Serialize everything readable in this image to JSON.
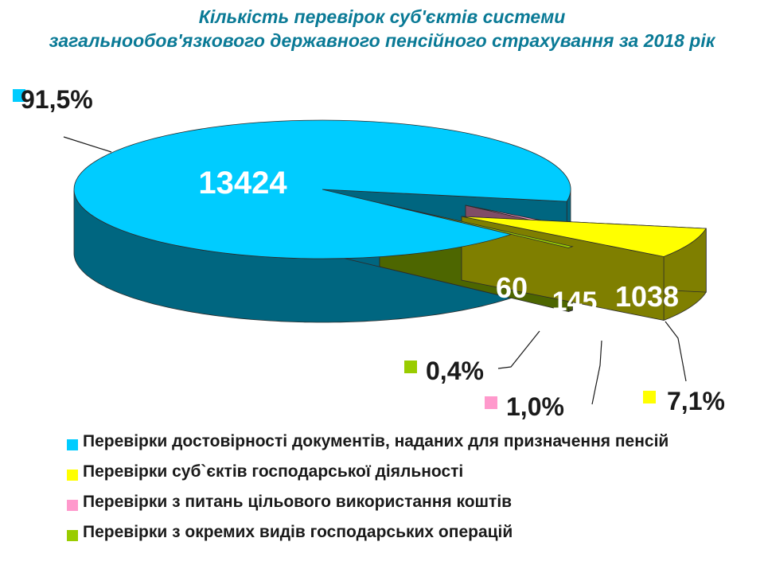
{
  "title": {
    "line1": "Кількість перевірок суб'єктів системи",
    "line2": "загальнообов'язкового державного пенсійного страхування за 2018 рік"
  },
  "chart_data": {
    "type": "pie",
    "style": "3d-exploded",
    "slices": [
      {
        "label": "Перевірки достовірності документів, наданих для призначення пенсій",
        "value": 13424,
        "percent_label": "91,5%",
        "color": "#00ccff",
        "side_color": "#006680"
      },
      {
        "label": "Перевірки суб`єктів господарської діяльності",
        "value": 1038,
        "percent_label": "7,1%",
        "color": "#ffff00",
        "side_color": "#7f7f00"
      },
      {
        "label": "Перевірки з питань цільового використання коштів",
        "value": 145,
        "percent_label": "1,0%",
        "color": "#ff99cc",
        "side_color": "#804d66"
      },
      {
        "label": "Перевірки з окремих видів господарських операцій",
        "value": 60,
        "percent_label": "0,4%",
        "color": "#99cc00",
        "side_color": "#4d6600"
      }
    ],
    "legend_position": "bottom"
  }
}
